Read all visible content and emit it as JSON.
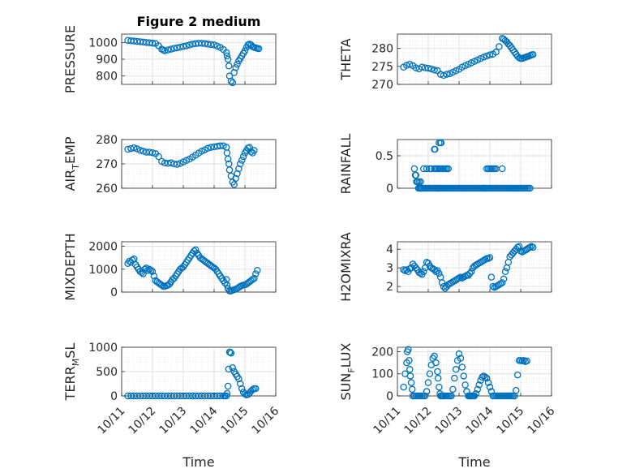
{
  "chart_data": [
    {
      "type": "scatter",
      "title": "Figure 2 medium",
      "ylabel": "PRESSURE",
      "xlabel": "",
      "xlim": [
        0,
        5
      ],
      "ylim": [
        750,
        1050
      ],
      "yticks": [
        800,
        900,
        1000
      ],
      "x": [
        0.2,
        0.3,
        0.4,
        0.5,
        0.6,
        0.7,
        0.8,
        0.9,
        1.0,
        1.1,
        1.2,
        1.3,
        1.35,
        1.4,
        1.5,
        1.6,
        1.7,
        1.8,
        1.9,
        2.0,
        2.1,
        2.2,
        2.3,
        2.4,
        2.5,
        2.6,
        2.7,
        2.8,
        2.9,
        3.0,
        3.1,
        3.2,
        3.3,
        3.4,
        3.42,
        3.45,
        3.48,
        3.5,
        3.55,
        3.6,
        3.65,
        3.7,
        3.75,
        3.8,
        3.85,
        3.9,
        3.95,
        4.0,
        4.05,
        4.1,
        4.15,
        4.2,
        4.25,
        4.3,
        4.35,
        4.4,
        4.45
      ],
      "y": [
        1012,
        1010,
        1008,
        1006,
        1004,
        1002,
        1000,
        998,
        996,
        994,
        980,
        960,
        955,
        950,
        955,
        960,
        965,
        968,
        972,
        976,
        980,
        985,
        990,
        993,
        995,
        995,
        993,
        990,
        988,
        985,
        978,
        970,
        958,
        940,
        920,
        900,
        860,
        800,
        770,
        760,
        820,
        850,
        870,
        890,
        905,
        920,
        935,
        950,
        970,
        985,
        990,
        985,
        975,
        970,
        968,
        965,
        963
      ]
    },
    {
      "type": "scatter",
      "ylabel": "THETA",
      "xlabel": "",
      "xlim": [
        0,
        5
      ],
      "ylim": [
        270,
        284
      ],
      "yticks": [
        270,
        275,
        280
      ],
      "x": [
        0.2,
        0.3,
        0.4,
        0.5,
        0.6,
        0.7,
        0.8,
        0.9,
        1.0,
        1.1,
        1.2,
        1.3,
        1.4,
        1.5,
        1.6,
        1.7,
        1.8,
        1.9,
        2.0,
        2.1,
        2.2,
        2.3,
        2.4,
        2.5,
        2.6,
        2.7,
        2.8,
        2.9,
        3.0,
        3.1,
        3.2,
        3.3,
        3.4,
        3.45,
        3.5,
        3.55,
        3.6,
        3.65,
        3.7,
        3.75,
        3.8,
        3.85,
        3.9,
        3.95,
        4.0,
        4.05,
        4.1,
        4.15,
        4.2,
        4.25,
        4.3,
        4.35,
        4.4
      ],
      "y": [
        274.8,
        275.3,
        275.6,
        275.2,
        274.6,
        274.3,
        274.8,
        274.6,
        274.5,
        274.3,
        274.0,
        273.8,
        272.8,
        272.5,
        272.8,
        273.0,
        273.4,
        273.8,
        274.2,
        274.8,
        275.2,
        275.6,
        276.0,
        276.4,
        276.8,
        277.2,
        277.6,
        277.9,
        278.2,
        278.4,
        279.0,
        280.5,
        282.8,
        282.6,
        282.2,
        281.8,
        281.2,
        280.8,
        280.2,
        279.6,
        279.0,
        278.4,
        277.8,
        277.4,
        277.2,
        277.2,
        277.4,
        277.5,
        277.7,
        277.8,
        278.0,
        278.2,
        278.3
      ]
    },
    {
      "type": "scatter",
      "ylabel": "AIR",
      "ylabel_sub": "T",
      "ylabel_tail": "EMP",
      "xlabel": "",
      "xlim": [
        0,
        5
      ],
      "ylim": [
        260,
        280
      ],
      "yticks": [
        260,
        270,
        280
      ],
      "x": [
        0.2,
        0.3,
        0.4,
        0.5,
        0.6,
        0.7,
        0.8,
        0.9,
        1.0,
        1.1,
        1.2,
        1.3,
        1.4,
        1.5,
        1.6,
        1.7,
        1.8,
        1.9,
        2.0,
        2.1,
        2.2,
        2.3,
        2.4,
        2.5,
        2.6,
        2.7,
        2.8,
        2.9,
        3.0,
        3.1,
        3.2,
        3.3,
        3.4,
        3.42,
        3.45,
        3.48,
        3.5,
        3.55,
        3.6,
        3.65,
        3.7,
        3.75,
        3.8,
        3.85,
        3.9,
        3.95,
        4.0,
        4.05,
        4.1,
        4.15,
        4.2,
        4.25,
        4.3
      ],
      "y": [
        276.0,
        276.3,
        276.6,
        276.2,
        275.6,
        275.2,
        274.8,
        274.8,
        274.6,
        274.2,
        273.0,
        271.0,
        270.4,
        270.2,
        270.4,
        270.0,
        269.8,
        270.2,
        270.8,
        271.4,
        272.0,
        272.8,
        273.6,
        274.4,
        275.2,
        275.8,
        276.4,
        276.8,
        277.0,
        277.2,
        277.4,
        277.4,
        276.8,
        274.5,
        272.0,
        270.0,
        267.5,
        265.0,
        262.5,
        261.5,
        264.0,
        266.0,
        268.0,
        270.0,
        271.5,
        273.0,
        274.5,
        275.5,
        276.5,
        276.8,
        275.0,
        274.5,
        275.5
      ]
    },
    {
      "type": "scatter",
      "ylabel": "RAINFALL",
      "xlabel": "",
      "xlim": [
        0,
        5
      ],
      "ylim": [
        0,
        0.75
      ],
      "yticks": [
        0,
        0.5
      ],
      "x": [
        0.6,
        0.65,
        0.7,
        0.72,
        0.75,
        0.78,
        0.8,
        0.85,
        0.9,
        0.95,
        1.0,
        1.05,
        1.1,
        1.15,
        1.2,
        1.25,
        1.3,
        1.32,
        1.35,
        1.4,
        1.45,
        1.5,
        1.55,
        1.6,
        1.65,
        1.7,
        1.75,
        1.8,
        1.85,
        1.9,
        1.95,
        2.0,
        2.05,
        2.1,
        2.15,
        2.2,
        2.25,
        2.3,
        2.35,
        2.4,
        2.45,
        2.5,
        2.55,
        2.6,
        2.65,
        2.7,
        2.75,
        2.8,
        2.85,
        2.9,
        2.95,
        3.0,
        3.05,
        3.1,
        3.15,
        3.2,
        3.25,
        3.3,
        3.35,
        3.4,
        3.45,
        3.5,
        3.55,
        3.6,
        3.65,
        3.7,
        3.75,
        3.8,
        3.85,
        3.9,
        3.95,
        4.0,
        4.05,
        4.1,
        4.15,
        4.2,
        4.25,
        4.3,
        0.55,
        0.58,
        0.62,
        0.68,
        0.75,
        0.85,
        0.95,
        1.05,
        1.1,
        1.2,
        1.25,
        1.3,
        1.35,
        1.4,
        1.45,
        1.5,
        1.55,
        1.6,
        1.65,
        2.8,
        2.85,
        2.9,
        2.95,
        3.0,
        3.05,
        3.1,
        3.15,
        3.2,
        3.4,
        1.2,
        1.22,
        1.35,
        1.4,
        1.42
      ],
      "y": [
        0.2,
        0.1,
        0.1,
        0.0,
        0.0,
        0.0,
        0.0,
        0.0,
        0.0,
        0.0,
        0.0,
        0.0,
        0.0,
        0.0,
        0.0,
        0.0,
        0.0,
        0.0,
        0.0,
        0.0,
        0.0,
        0.0,
        0.0,
        0.0,
        0.0,
        0.0,
        0.0,
        0.0,
        0.0,
        0.0,
        0.0,
        0.0,
        0.0,
        0.0,
        0.0,
        0.0,
        0.0,
        0.0,
        0.0,
        0.0,
        0.0,
        0.0,
        0.0,
        0.0,
        0.0,
        0.0,
        0.0,
        0.0,
        0.0,
        0.0,
        0.0,
        0.0,
        0.0,
        0.0,
        0.0,
        0.0,
        0.0,
        0.0,
        0.0,
        0.0,
        0.0,
        0.0,
        0.0,
        0.0,
        0.0,
        0.0,
        0.0,
        0.0,
        0.0,
        0.0,
        0.0,
        0.0,
        0.0,
        0.0,
        0.0,
        0.0,
        0.0,
        0.0,
        0.3,
        0.2,
        0.1,
        0.0,
        0.1,
        0.3,
        0.3,
        0.3,
        0.3,
        0.3,
        0.3,
        0.3,
        0.3,
        0.3,
        0.3,
        0.3,
        0.3,
        0.3,
        0.3,
        0.0,
        0.0,
        0.3,
        0.3,
        0.3,
        0.3,
        0.3,
        0.3,
        0.3,
        0.3,
        0.6,
        0.6,
        0.7,
        0.7,
        0.7
      ]
    },
    {
      "type": "scatter",
      "ylabel": "MIXDEPTH",
      "xlabel": "",
      "xlim": [
        0,
        5
      ],
      "ylim": [
        0,
        2200
      ],
      "yticks": [
        0,
        1000,
        2000
      ],
      "x": [
        0.2,
        0.25,
        0.3,
        0.35,
        0.4,
        0.45,
        0.5,
        0.55,
        0.6,
        0.65,
        0.7,
        0.75,
        0.8,
        0.85,
        0.9,
        0.95,
        1.0,
        1.05,
        1.1,
        1.15,
        1.2,
        1.25,
        1.3,
        1.35,
        1.4,
        1.45,
        1.5,
        1.55,
        1.6,
        1.65,
        1.7,
        1.75,
        1.8,
        1.85,
        1.9,
        1.95,
        2.0,
        2.05,
        2.1,
        2.15,
        2.2,
        2.25,
        2.3,
        2.35,
        2.4,
        2.45,
        2.5,
        2.55,
        2.6,
        2.65,
        2.7,
        2.75,
        2.8,
        2.85,
        2.9,
        2.95,
        3.0,
        3.05,
        3.1,
        3.15,
        3.2,
        3.25,
        3.3,
        3.35,
        3.4,
        3.42,
        3.45,
        3.5,
        3.55,
        3.6,
        3.65,
        3.7,
        3.75,
        3.8,
        3.85,
        3.9,
        3.95,
        4.0,
        4.05,
        4.1,
        4.15,
        4.2,
        4.25,
        4.3,
        4.35,
        4.4
      ],
      "y": [
        1250,
        1350,
        1300,
        1400,
        1450,
        1200,
        1100,
        1000,
        900,
        850,
        800,
        1000,
        1050,
        950,
        1000,
        950,
        900,
        700,
        500,
        450,
        400,
        350,
        300,
        250,
        250,
        280,
        300,
        350,
        450,
        550,
        600,
        700,
        800,
        900,
        1000,
        1050,
        1100,
        1200,
        1300,
        1400,
        1500,
        1600,
        1700,
        1800,
        1850,
        1700,
        1600,
        1500,
        1450,
        1400,
        1350,
        1300,
        1250,
        1200,
        1150,
        1100,
        1050,
        1000,
        900,
        800,
        700,
        600,
        500,
        400,
        550,
        300,
        150,
        50,
        50,
        80,
        100,
        130,
        160,
        200,
        250,
        280,
        300,
        320,
        350,
        400,
        450,
        500,
        550,
        600,
        800,
        950
      ]
    },
    {
      "type": "scatter",
      "ylabel": "H2OMIXRA",
      "xlabel": "",
      "xlim": [
        0,
        5
      ],
      "ylim": [
        1.7,
        4.4
      ],
      "yticks": [
        2,
        3,
        4
      ],
      "x": [
        0.2,
        0.25,
        0.3,
        0.35,
        0.4,
        0.45,
        0.5,
        0.55,
        0.6,
        0.65,
        0.7,
        0.75,
        0.8,
        0.85,
        0.9,
        0.95,
        1.0,
        1.05,
        1.1,
        1.15,
        1.2,
        1.25,
        1.3,
        1.35,
        1.4,
        1.45,
        1.5,
        1.55,
        1.6,
        1.65,
        1.7,
        1.75,
        1.8,
        1.85,
        1.9,
        1.95,
        2.0,
        2.05,
        2.1,
        2.15,
        2.2,
        2.25,
        2.3,
        2.35,
        2.4,
        2.45,
        2.5,
        2.55,
        2.6,
        2.65,
        2.7,
        2.75,
        2.8,
        2.85,
        2.9,
        2.95,
        3.0,
        3.05,
        3.1,
        3.15,
        3.2,
        3.25,
        3.3,
        3.35,
        3.4,
        3.45,
        3.5,
        3.55,
        3.6,
        3.65,
        3.7,
        3.75,
        3.8,
        3.85,
        3.9,
        3.95,
        4.0,
        4.05,
        4.1,
        4.15,
        4.2,
        4.25,
        4.3,
        4.35,
        4.4
      ],
      "y": [
        2.9,
        2.85,
        2.9,
        2.8,
        2.95,
        3.0,
        3.2,
        3.1,
        3.0,
        2.9,
        2.75,
        2.7,
        2.65,
        2.8,
        3.0,
        3.3,
        3.25,
        3.1,
        3.0,
        2.95,
        2.9,
        2.8,
        2.85,
        2.7,
        2.5,
        2.2,
        2.0,
        1.9,
        2.0,
        2.1,
        2.15,
        2.2,
        2.25,
        2.3,
        2.35,
        2.4,
        2.45,
        2.5,
        2.45,
        2.5,
        2.55,
        2.6,
        2.6,
        2.7,
        2.8,
        3.0,
        3.1,
        3.15,
        3.2,
        3.25,
        3.3,
        3.35,
        3.4,
        3.45,
        3.5,
        3.5,
        3.55,
        2.5,
        2.0,
        1.95,
        2.0,
        2.05,
        2.1,
        2.15,
        2.2,
        2.4,
        2.8,
        3.0,
        3.3,
        3.6,
        3.7,
        3.8,
        3.9,
        4.0,
        4.1,
        4.15,
        3.9,
        3.85,
        3.9,
        3.95,
        4.0,
        4.05,
        4.1,
        4.15,
        4.1
      ]
    },
    {
      "type": "scatter",
      "ylabel": "TERR",
      "ylabel_sub": "M",
      "ylabel_tail": "SL",
      "xlabel": "Time",
      "xlim": [
        0,
        5
      ],
      "ylim": [
        0,
        1000
      ],
      "yticks": [
        0,
        500,
        1000
      ],
      "xticklabels": [
        "10/11",
        "10/12",
        "10/13",
        "10/14",
        "10/15",
        "10/16"
      ],
      "x": [
        0.2,
        0.3,
        0.4,
        0.5,
        0.6,
        0.7,
        0.8,
        0.9,
        1.0,
        1.1,
        1.2,
        1.3,
        1.4,
        1.5,
        1.6,
        1.7,
        1.8,
        1.9,
        2.0,
        2.1,
        2.2,
        2.3,
        2.4,
        2.5,
        2.6,
        2.7,
        2.8,
        2.9,
        3.0,
        3.1,
        3.2,
        3.3,
        3.35,
        3.4,
        3.42,
        3.45,
        3.47,
        3.5,
        3.52,
        3.55,
        3.6,
        3.65,
        3.7,
        3.75,
        3.8,
        3.85,
        3.9,
        3.95,
        4.0,
        4.05,
        4.1,
        4.15,
        4.2,
        4.25,
        4.3,
        4.35
      ],
      "y": [
        0,
        0,
        0,
        0,
        0,
        0,
        0,
        0,
        0,
        0,
        0,
        0,
        0,
        0,
        0,
        0,
        0,
        0,
        0,
        0,
        0,
        0,
        0,
        0,
        0,
        0,
        0,
        0,
        0,
        0,
        0,
        0,
        0,
        0,
        50,
        200,
        550,
        900,
        900,
        880,
        580,
        500,
        450,
        400,
        350,
        250,
        150,
        80,
        40,
        20,
        30,
        60,
        100,
        130,
        150,
        150
      ]
    },
    {
      "type": "scatter",
      "ylabel": "SUN",
      "ylabel_sub": "F",
      "ylabel_tail": "LUX",
      "xlabel": "Time",
      "xlim": [
        0,
        5
      ],
      "ylim": [
        0,
        220
      ],
      "yticks": [
        0,
        100,
        200
      ],
      "xticklabels": [
        "10/11",
        "10/12",
        "10/13",
        "10/14",
        "10/15",
        "10/16"
      ],
      "x": [
        0.2,
        0.25,
        0.3,
        0.32,
        0.35,
        0.38,
        0.4,
        0.42,
        0.45,
        0.48,
        0.5,
        0.55,
        0.6,
        0.65,
        0.7,
        0.75,
        0.8,
        0.85,
        0.9,
        0.95,
        1.0,
        1.05,
        1.1,
        1.15,
        1.2,
        1.25,
        1.3,
        1.32,
        1.35,
        1.38,
        1.4,
        1.42,
        1.45,
        1.48,
        1.5,
        1.55,
        1.6,
        1.65,
        1.7,
        1.75,
        1.8,
        1.85,
        1.9,
        1.95,
        2.0,
        2.05,
        2.1,
        2.15,
        2.2,
        2.25,
        2.3,
        2.32,
        2.35,
        2.38,
        2.4,
        2.42,
        2.45,
        2.48,
        2.5,
        2.55,
        2.6,
        2.65,
        2.7,
        2.75,
        2.8,
        2.85,
        2.9,
        2.95,
        3.0,
        3.05,
        3.1,
        3.15,
        3.2,
        3.25,
        3.3,
        3.35,
        3.4,
        3.45,
        3.5,
        3.55,
        3.6,
        3.65,
        3.7,
        3.75,
        3.8,
        3.85,
        3.9,
        3.95,
        4.0,
        4.05,
        4.1,
        4.15,
        4.2
      ],
      "y": [
        40,
        100,
        150,
        200,
        210,
        160,
        120,
        90,
        60,
        30,
        0,
        0,
        0,
        0,
        0,
        0,
        0,
        0,
        0,
        20,
        60,
        100,
        140,
        170,
        180,
        150,
        110,
        80,
        40,
        10,
        0,
        0,
        0,
        0,
        0,
        0,
        0,
        0,
        0,
        0,
        30,
        80,
        120,
        160,
        190,
        170,
        130,
        90,
        50,
        20,
        0,
        0,
        0,
        0,
        0,
        0,
        0,
        0,
        0,
        10,
        30,
        50,
        70,
        85,
        90,
        85,
        80,
        60,
        40,
        20,
        0,
        0,
        0,
        0,
        0,
        0,
        0,
        0,
        0,
        0,
        0,
        0,
        0,
        0,
        0,
        25,
        95,
        160,
        160,
        158,
        160,
        155,
        158
      ]
    }
  ],
  "style": {
    "marker_color": "#0072BD",
    "grid_color": "#dfdfdf",
    "axis_color": "#262626"
  }
}
